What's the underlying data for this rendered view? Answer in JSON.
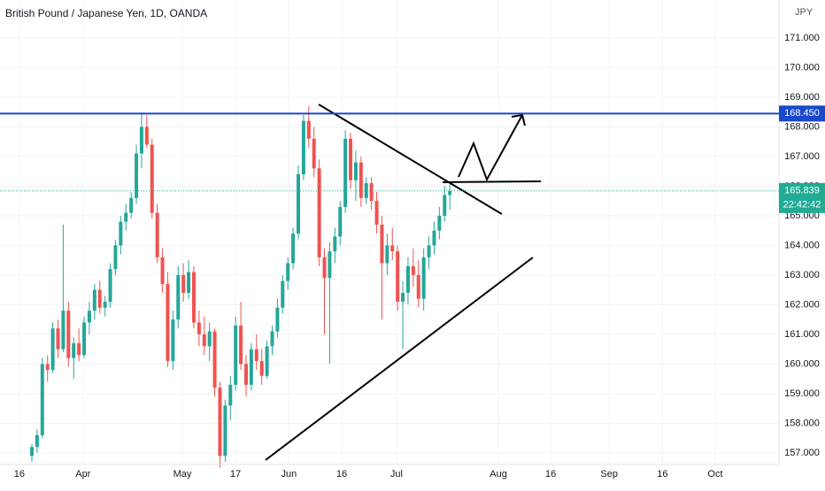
{
  "chart_data": {
    "type": "candlestick",
    "title": "British Pound / Japanese Yen, 1D, OANDA",
    "currency": "JPY",
    "up_color": "#26a69a",
    "down_color": "#ef5350",
    "x": [
      0,
      1,
      2,
      3,
      4,
      5,
      6,
      7,
      8,
      9,
      10,
      11,
      12,
      13,
      14,
      15,
      16,
      17,
      18,
      19,
      20,
      21,
      22,
      23,
      24,
      25,
      26,
      27,
      28,
      29,
      30,
      31,
      32,
      33,
      34,
      35,
      36,
      37,
      38,
      39,
      40,
      41,
      42,
      43,
      44,
      45,
      46,
      47,
      48,
      49,
      50,
      51,
      52,
      53,
      54,
      55,
      56,
      57,
      58,
      59,
      60,
      61,
      62,
      63,
      64,
      65,
      66,
      67,
      68,
      69,
      70,
      71,
      72,
      73,
      74,
      75,
      76,
      77,
      78,
      79,
      80
    ],
    "open": [
      156.9,
      157.2,
      157.6,
      160.0,
      159.8,
      161.2,
      160.5,
      161.8,
      160.2,
      160.7,
      160.3,
      161.4,
      161.8,
      162.5,
      161.9,
      162.1,
      163.2,
      164.0,
      164.8,
      165.1,
      165.6,
      167.1,
      168.0,
      167.4,
      165.1,
      163.6,
      162.7,
      160.1,
      161.5,
      163.0,
      162.4,
      163.1,
      161.4,
      161.0,
      160.6,
      161.1,
      159.2,
      156.9,
      158.6,
      159.3,
      161.3,
      160.0,
      159.3,
      160.5,
      160.1,
      159.6,
      160.6,
      161.1,
      161.9,
      162.8,
      163.4,
      164.4,
      166.4,
      168.2,
      167.6,
      166.6,
      163.6,
      162.9,
      163.8,
      164.3,
      165.3,
      167.6,
      166.2,
      166.8,
      165.6,
      166.1,
      165.5,
      164.7,
      163.4,
      164.0,
      163.8,
      162.1,
      162.4,
      163.3,
      163.0,
      162.2,
      163.6,
      164.0,
      164.5,
      165.0,
      165.7
    ],
    "high": [
      157.3,
      157.8,
      160.2,
      160.3,
      161.4,
      161.5,
      164.7,
      162.1,
      160.9,
      161.2,
      161.6,
      162.1,
      162.7,
      162.8,
      162.3,
      163.4,
      164.2,
      165.0,
      165.4,
      165.8,
      167.4,
      168.45,
      168.4,
      167.6,
      165.4,
      163.9,
      163.1,
      161.8,
      163.3,
      163.4,
      163.5,
      163.3,
      161.8,
      161.6,
      161.4,
      161.2,
      159.4,
      158.8,
      159.6,
      161.6,
      162.1,
      160.3,
      160.7,
      161.0,
      160.5,
      160.8,
      161.3,
      162.2,
      163.0,
      163.6,
      164.6,
      166.7,
      168.4,
      168.7,
      168.0,
      166.9,
      163.9,
      164.1,
      164.6,
      165.5,
      167.9,
      167.8,
      167.2,
      167.0,
      166.3,
      166.3,
      165.8,
      165.0,
      164.4,
      164.6,
      164.0,
      162.8,
      163.6,
      163.9,
      163.5,
      163.9,
      164.3,
      164.8,
      165.3,
      166.0,
      166.1
    ],
    "low": [
      156.7,
      157.0,
      157.5,
      159.4,
      159.7,
      160.2,
      160.4,
      159.9,
      159.5,
      160.1,
      160.2,
      161.0,
      161.5,
      161.7,
      161.6,
      161.9,
      163.0,
      163.7,
      164.5,
      164.9,
      165.4,
      166.6,
      167.3,
      164.9,
      163.4,
      162.4,
      159.9,
      159.8,
      161.2,
      162.1,
      162.2,
      161.2,
      160.6,
      160.3,
      160.1,
      158.9,
      156.5,
      156.7,
      158.1,
      159.1,
      159.8,
      158.9,
      159.1,
      159.8,
      159.3,
      159.5,
      160.3,
      160.9,
      161.7,
      162.5,
      163.2,
      164.2,
      166.2,
      167.3,
      166.3,
      163.3,
      161.0,
      160.0,
      163.4,
      164.0,
      165.1,
      165.9,
      165.5,
      165.3,
      165.4,
      165.2,
      164.4,
      161.5,
      163.0,
      163.5,
      161.8,
      160.5,
      162.0,
      162.6,
      161.9,
      161.8,
      163.2,
      163.7,
      164.2,
      164.8,
      165.2
    ],
    "close": [
      157.2,
      157.6,
      160.0,
      159.8,
      161.2,
      160.5,
      161.8,
      160.2,
      160.7,
      160.3,
      161.4,
      161.8,
      162.5,
      161.9,
      162.1,
      163.2,
      164.0,
      164.8,
      165.1,
      165.6,
      167.1,
      168.0,
      167.4,
      165.1,
      163.6,
      162.7,
      160.1,
      161.5,
      163.0,
      162.4,
      163.1,
      161.4,
      161.0,
      160.6,
      161.1,
      159.2,
      156.9,
      158.6,
      159.3,
      161.3,
      160.0,
      159.3,
      160.5,
      160.1,
      159.6,
      160.6,
      161.1,
      161.9,
      162.8,
      163.4,
      164.4,
      166.4,
      168.2,
      167.6,
      166.6,
      163.6,
      162.9,
      163.8,
      164.3,
      165.3,
      167.6,
      166.2,
      166.8,
      165.6,
      166.1,
      165.5,
      164.7,
      163.4,
      164.0,
      163.8,
      162.1,
      162.4,
      163.3,
      163.0,
      162.2,
      163.6,
      164.0,
      164.5,
      165.0,
      165.7,
      165.839
    ],
    "xlim": [
      -6.1,
      143
    ],
    "xticks": [
      {
        "value": -2.4,
        "label": "16"
      },
      {
        "value": 9.8,
        "label": "Apr"
      },
      {
        "value": 28.8,
        "label": "May"
      },
      {
        "value": 39,
        "label": "17"
      },
      {
        "value": 49.2,
        "label": "Jun"
      },
      {
        "value": 59.3,
        "label": "16"
      },
      {
        "value": 69.8,
        "label": "Jul"
      },
      {
        "value": 89.3,
        "label": "Aug"
      },
      {
        "value": 99.3,
        "label": "16"
      },
      {
        "value": 110.5,
        "label": "Sep"
      },
      {
        "value": 120.7,
        "label": "16"
      },
      {
        "value": 130.8,
        "label": "Oct"
      }
    ],
    "ylim": [
      156.7,
      172.28
    ],
    "yticks": [
      {
        "value": 157,
        "label": "157.000"
      },
      {
        "value": 158,
        "label": "158.000"
      },
      {
        "value": 159,
        "label": "159.000"
      },
      {
        "value": 160,
        "label": "160.000"
      },
      {
        "value": 161,
        "label": "161.000"
      },
      {
        "value": 162,
        "label": "162.000"
      },
      {
        "value": 163,
        "label": "163.000"
      },
      {
        "value": 164,
        "label": "164.000"
      },
      {
        "value": 165,
        "label": "165.000"
      },
      {
        "value": 166,
        "label": "166.000"
      },
      {
        "value": 167,
        "label": "167.000"
      },
      {
        "value": 168,
        "label": "168.000"
      },
      {
        "value": 169,
        "label": "169.000"
      },
      {
        "value": 170,
        "label": "170.000"
      },
      {
        "value": 171,
        "label": "171.000"
      }
    ],
    "grid": true,
    "resistance": {
      "value": 168.45,
      "label": "168.450",
      "color": "#1848cc"
    },
    "last_price": {
      "value": 165.839,
      "label": "165.839",
      "color": "#22ab94"
    },
    "countdown": "22:42:42"
  }
}
